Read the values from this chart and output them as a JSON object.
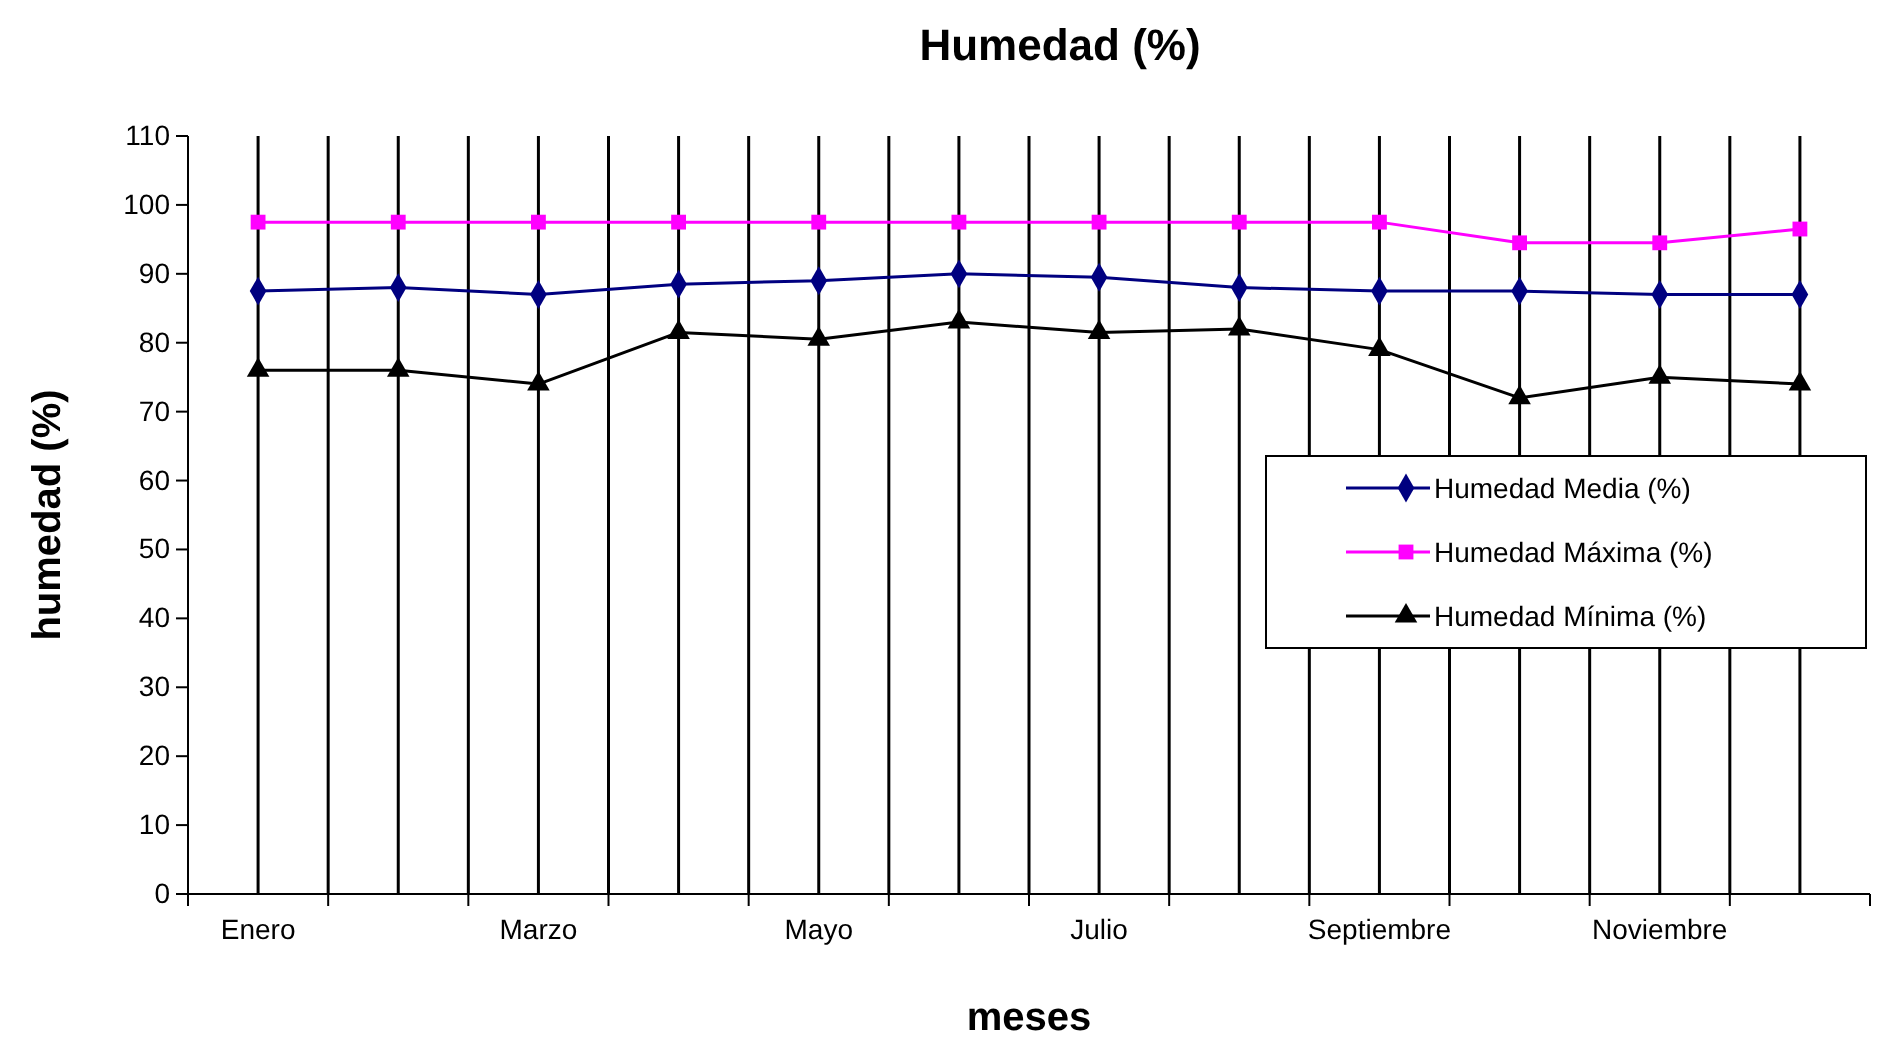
{
  "chart_data": {
    "type": "line",
    "title": "Humedad (%)",
    "xlabel": "meses",
    "ylabel": "humedad (%)",
    "categories": [
      "Enero",
      null,
      "Marzo",
      null,
      "Mayo",
      null,
      "Julio",
      null,
      "Septiembre",
      null,
      "Noviembre",
      null
    ],
    "series": [
      {
        "name": "Humedad Media (%)",
        "color": "#000080",
        "marker": "diamond",
        "values": [
          87.5,
          88,
          87,
          88.5,
          89,
          90,
          89.5,
          88,
          87.5,
          87.5,
          87,
          87
        ]
      },
      {
        "name": "Humedad Máxima (%)",
        "color": "#ff00ff",
        "marker": "square",
        "values": [
          97.5,
          97.5,
          97.5,
          97.5,
          97.5,
          97.5,
          97.5,
          97.5,
          97.5,
          94.5,
          94.5,
          96.5
        ]
      },
      {
        "name": "Humedad Mínima (%)",
        "color": "#000000",
        "marker": "triangle",
        "values": [
          76,
          76,
          74,
          81.5,
          80.5,
          83,
          81.5,
          82,
          79,
          72,
          75,
          74
        ]
      }
    ],
    "ylim": [
      0,
      110
    ],
    "yticks": [
      0,
      10,
      20,
      30,
      40,
      50,
      60,
      70,
      80,
      90,
      100,
      110
    ],
    "grid": "x",
    "legend": "right",
    "line_style": "solid"
  }
}
